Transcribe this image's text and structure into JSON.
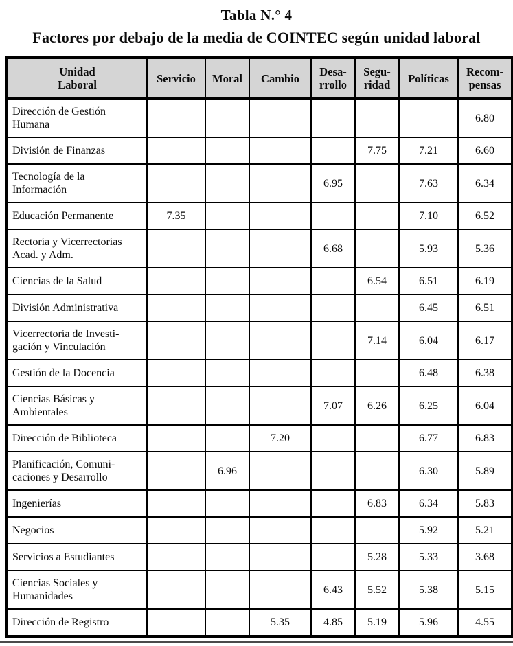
{
  "title": "Tabla N.° 4",
  "subtitle": "Factores por debajo de la media de COINTEC según unidad laboral",
  "colors": {
    "header_bg": "#d5d5d5",
    "border": "#000000",
    "text": "#0b0b0b"
  },
  "table": {
    "columns": [
      "Unidad\nLaboral",
      "Servicio",
      "Moral",
      "Cambio",
      "Desa-\nrrollo",
      "Segu-\nridad",
      "Políticas",
      "Recom-\npensas"
    ],
    "rows": [
      [
        "Dirección de Gestión\nHumana",
        "",
        "",
        "",
        "",
        "",
        "",
        "6.80"
      ],
      [
        "División de Finanzas",
        "",
        "",
        "",
        "",
        "7.75",
        "7.21",
        "6.60"
      ],
      [
        "Tecnología de la\nInformación",
        "",
        "",
        "",
        "6.95",
        "",
        "7.63",
        "6.34"
      ],
      [
        "Educación Permanente",
        "7.35",
        "",
        "",
        "",
        "",
        "7.10",
        "6.52"
      ],
      [
        "Rectoría y Vicerrectorías\nAcad. y Adm.",
        "",
        "",
        "",
        "6.68",
        "",
        "5.93",
        "5.36"
      ],
      [
        "Ciencias de la Salud",
        "",
        "",
        "",
        "",
        "6.54",
        "6.51",
        "6.19"
      ],
      [
        "División Administrativa",
        "",
        "",
        "",
        "",
        "",
        "6.45",
        "6.51"
      ],
      [
        "Vicerrectoría de Investi-\ngación y Vinculación",
        "",
        "",
        "",
        "",
        "7.14",
        "6.04",
        "6.17"
      ],
      [
        "Gestión de la Docencia",
        "",
        "",
        "",
        "",
        "",
        "6.48",
        "6.38"
      ],
      [
        "Ciencias Básicas y\nAmbientales",
        "",
        "",
        "",
        "7.07",
        "6.26",
        "6.25",
        "6.04"
      ],
      [
        "Dirección de Biblioteca",
        "",
        "",
        "7.20",
        "",
        "",
        "6.77",
        "6.83"
      ],
      [
        "Planificación, Comuni-\ncaciones y Desarrollo",
        "",
        "6.96",
        "",
        "",
        "",
        "6.30",
        "5.89"
      ],
      [
        "Ingenierías",
        "",
        "",
        "",
        "",
        "6.83",
        "6.34",
        "5.83"
      ],
      [
        "Negocios",
        "",
        "",
        "",
        "",
        "",
        "5.92",
        "5.21"
      ],
      [
        "Servicios a Estudiantes",
        "",
        "",
        "",
        "",
        "5.28",
        "5.33",
        "3.68"
      ],
      [
        "Ciencias Sociales y\nHumanidades",
        "",
        "",
        "",
        "6.43",
        "5.52",
        "5.38",
        "5.15"
      ],
      [
        "Dirección de Registro",
        "",
        "",
        "5.35",
        "4.85",
        "5.19",
        "5.96",
        "4.55"
      ]
    ]
  }
}
